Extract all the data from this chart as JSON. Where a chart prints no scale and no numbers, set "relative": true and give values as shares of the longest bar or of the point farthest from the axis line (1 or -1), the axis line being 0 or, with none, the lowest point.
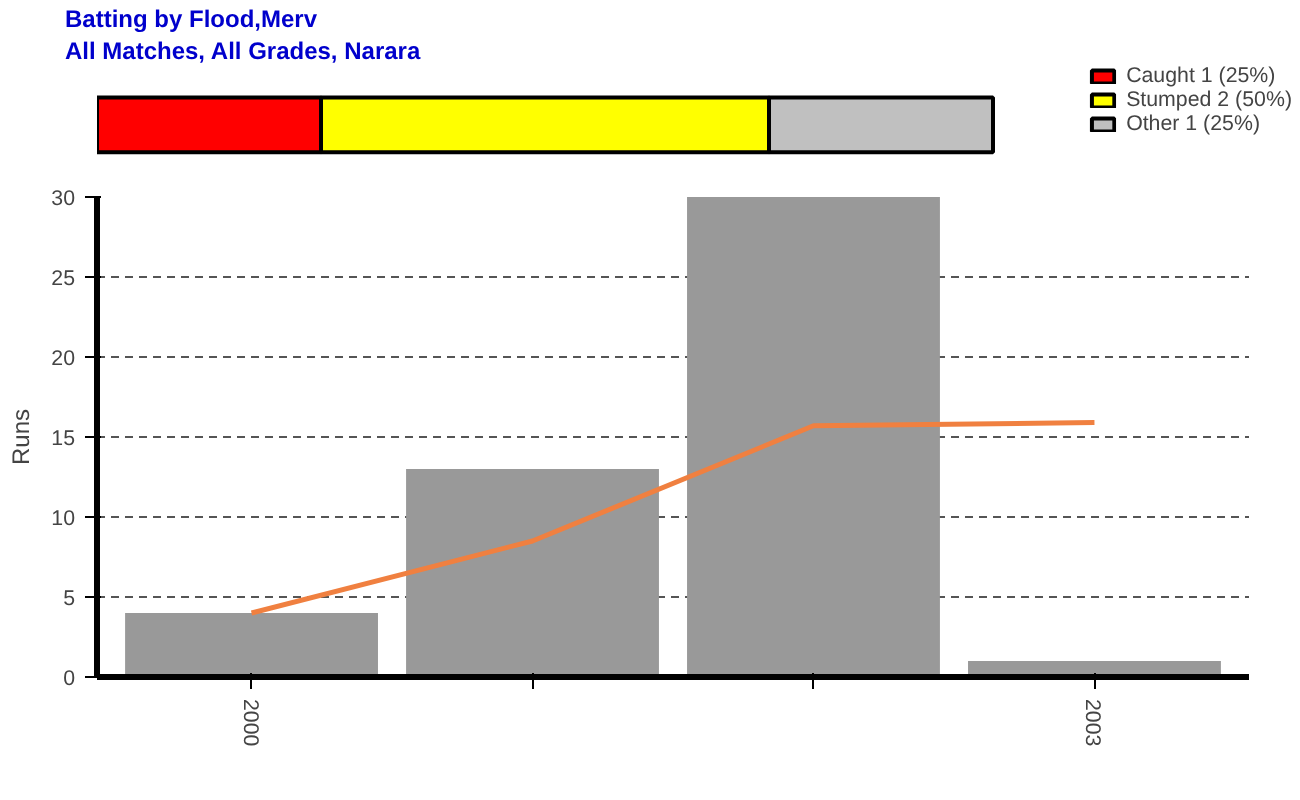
{
  "chart_data": [
    {
      "type": "bar",
      "orientation": "horizontal",
      "stacked": true,
      "relative": true,
      "title": "Batting by Flood,Merv",
      "subtitle": "All Matches, All Grades, Narara",
      "categories": [
        null
      ],
      "legend": "top right",
      "series": [
        {
          "name": "Caught 1 (25%)",
          "color": "#ff0000",
          "values": [
            0.25
          ]
        },
        {
          "name": "Stumped 2 (50%)",
          "color": "#ffff00",
          "values": [
            0.5
          ]
        },
        {
          "name": "Other 1 (25%)",
          "color": "#c0c0c0",
          "values": [
            0.25
          ]
        }
      ]
    },
    {
      "type": "bar",
      "ylabel": "Runs",
      "categories": [
        "2000",
        null,
        null,
        "2003"
      ],
      "ylim": [
        0,
        30
      ],
      "yticks": [
        0,
        5,
        10,
        15,
        20,
        25,
        30
      ],
      "grid": "y",
      "series": [
        {
          "color": "#999999",
          "values": [
            4,
            13,
            30,
            1
          ]
        },
        {
          "type": "line",
          "color": "#f08040",
          "values": [
            4,
            8.5,
            15.7,
            15.9
          ]
        }
      ]
    }
  ]
}
